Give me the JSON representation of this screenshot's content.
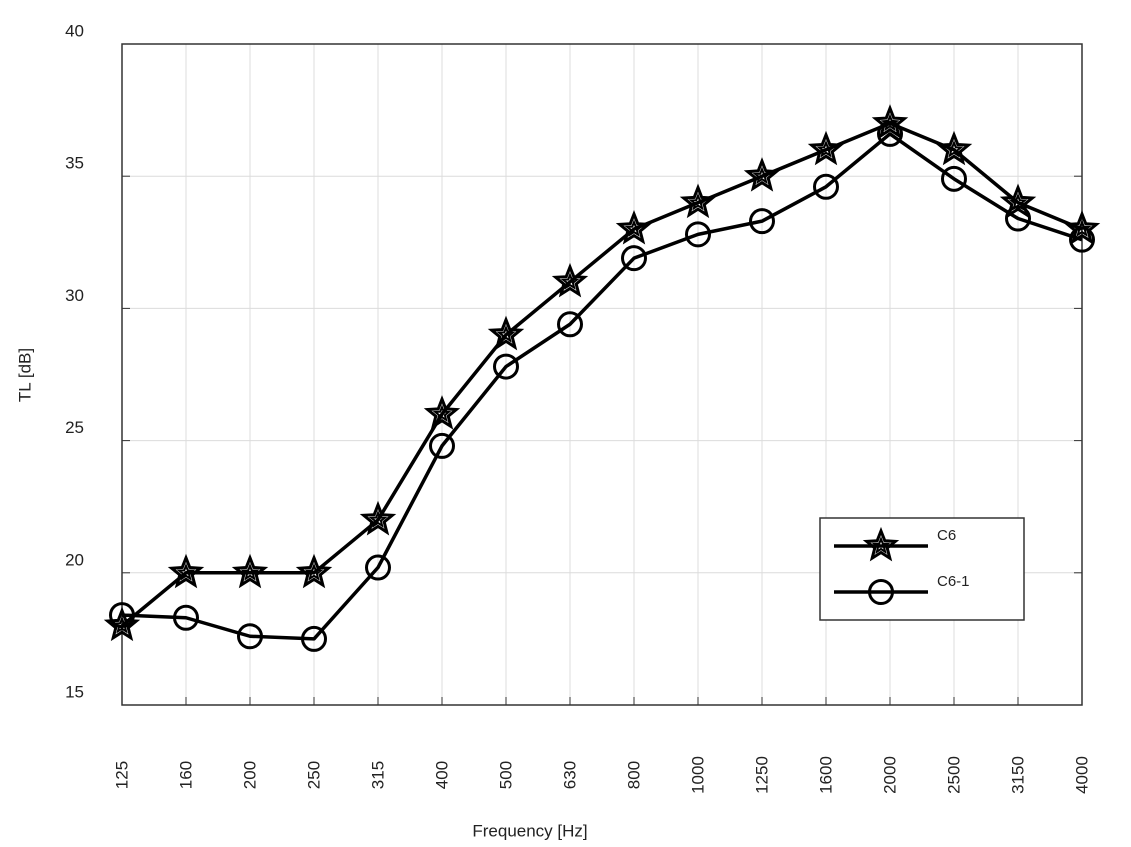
{
  "chart_data": {
    "type": "line",
    "x_label": "Frequency [Hz]",
    "y_label": "TL [dB]",
    "categories": [
      "125",
      "160",
      "200",
      "250",
      "315",
      "400",
      "500",
      "630",
      "800",
      "1000",
      "1250",
      "1600",
      "2000",
      "2500",
      "3150",
      "4000"
    ],
    "series": [
      {
        "name": "C6",
        "color": "#000000",
        "marker": "star",
        "values": [
          18,
          20,
          20,
          20,
          22,
          26,
          29,
          31,
          33,
          34,
          35,
          36,
          37,
          36,
          34,
          33
        ]
      },
      {
        "name": "C6-1",
        "color": "#000000",
        "marker": "circle",
        "values": [
          18.4,
          18.3,
          17.6,
          17.5,
          20.2,
          24.8,
          27.8,
          29.4,
          31.9,
          32.8,
          33.3,
          34.6,
          36.6,
          34.9,
          33.4,
          32.6
        ]
      }
    ],
    "ylim": [
      15,
      40
    ],
    "yticks": [
      15,
      20,
      25,
      30,
      35,
      40
    ],
    "grid": true,
    "legend": "lower right"
  }
}
